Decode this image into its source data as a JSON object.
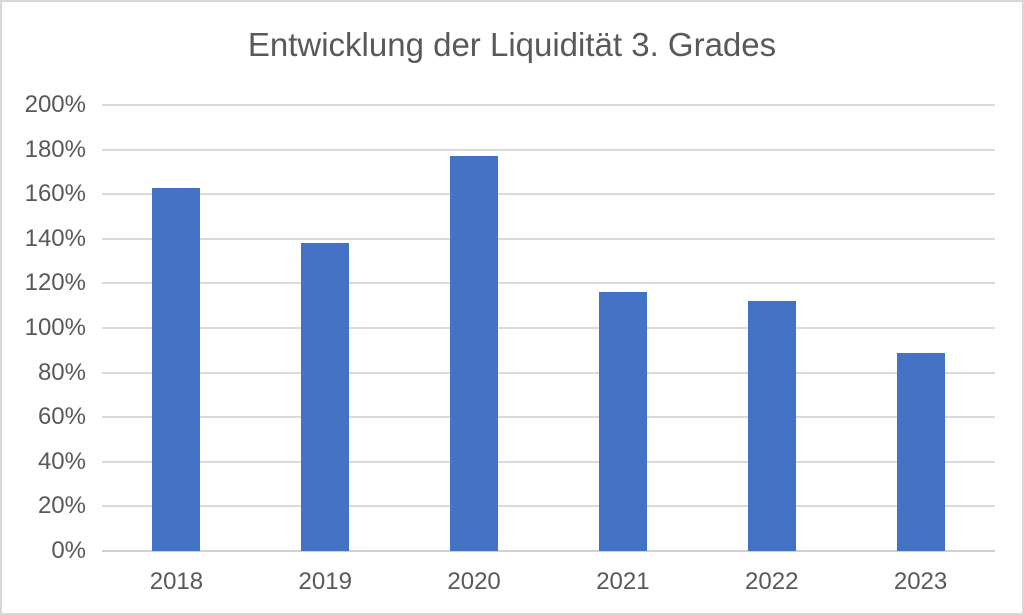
{
  "chart_data": {
    "type": "bar",
    "title": "Entwicklung der Liquidität 3. Grades",
    "categories": [
      "2018",
      "2019",
      "2020",
      "2021",
      "2022",
      "2023"
    ],
    "values": [
      163,
      138,
      177,
      116,
      112,
      89
    ],
    "unit": "%",
    "xlabel": "",
    "ylabel": "",
    "y_axis": {
      "min": 0,
      "max": 200,
      "step": 20,
      "tick_labels": [
        "0%",
        "20%",
        "40%",
        "60%",
        "80%",
        "100%",
        "120%",
        "140%",
        "160%",
        "180%",
        "200%"
      ]
    },
    "grid": true,
    "legend": "none",
    "colors": {
      "bar": "#4472C4",
      "text": "#595959",
      "gridline": "#DADADA",
      "axis_line": "#D0D0D0",
      "background": "#FFFFFF",
      "frame_border": "#D8D8D8"
    }
  }
}
